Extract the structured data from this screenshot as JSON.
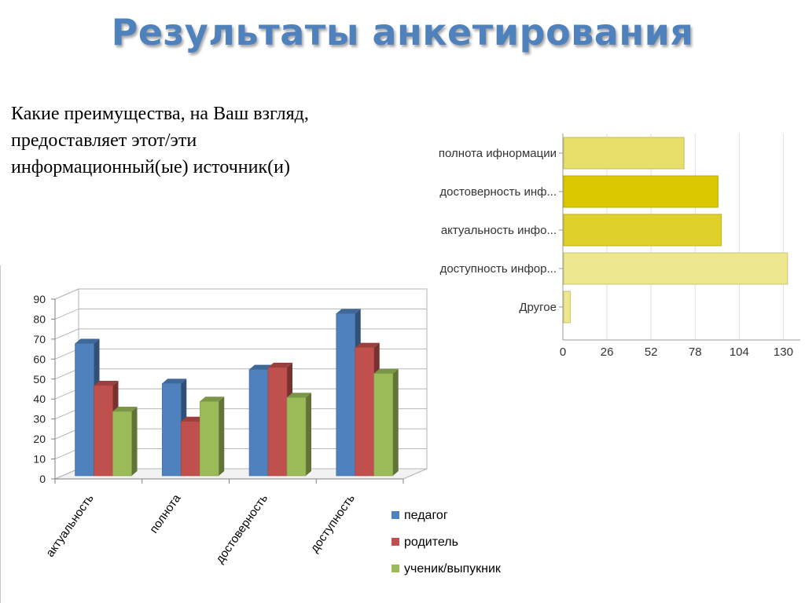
{
  "title": "Результаты анкетирования",
  "question": {
    "lines": [
      "Какие преимущества, на Ваш взгляд,",
      "предоставляет этот/эти",
      "информационный(ые) источник(и)"
    ]
  },
  "colors": {
    "title": "#4f81bd",
    "teacher": "#4f81bd",
    "parent": "#c0504d",
    "student": "#9bbb59"
  },
  "chart_data": [
    {
      "type": "bar",
      "orientation": "horizontal",
      "categories": [
        "полнота ифнормации",
        "достоверность инф...",
        "актуальность инфо...",
        "доступность инфор...",
        "Другое"
      ],
      "values": [
        71,
        91,
        93,
        132,
        4
      ],
      "xlim": [
        0,
        140
      ],
      "ticks": [
        0,
        26,
        52,
        78,
        104,
        130
      ],
      "bar_colors": [
        "#e7df6a",
        "#dcc800",
        "#e0d02a",
        "#ede88e",
        "#ede88e"
      ],
      "grid": true
    },
    {
      "type": "bar",
      "style": "3d-clustered-column",
      "categories": [
        "актуальность",
        "полнота",
        "достоверность",
        "доступность"
      ],
      "series": [
        {
          "name": "педагог",
          "values": [
            67,
            47,
            54,
            82
          ]
        },
        {
          "name": "родитель",
          "values": [
            46,
            28,
            55,
            65
          ]
        },
        {
          "name": "ученик/выпукник",
          "values": [
            33,
            38,
            40,
            52
          ]
        }
      ],
      "ylim": [
        0,
        90
      ],
      "yticks": [
        0,
        10,
        20,
        30,
        40,
        50,
        60,
        70,
        80,
        90
      ],
      "legend": "right",
      "grid": true
    }
  ]
}
